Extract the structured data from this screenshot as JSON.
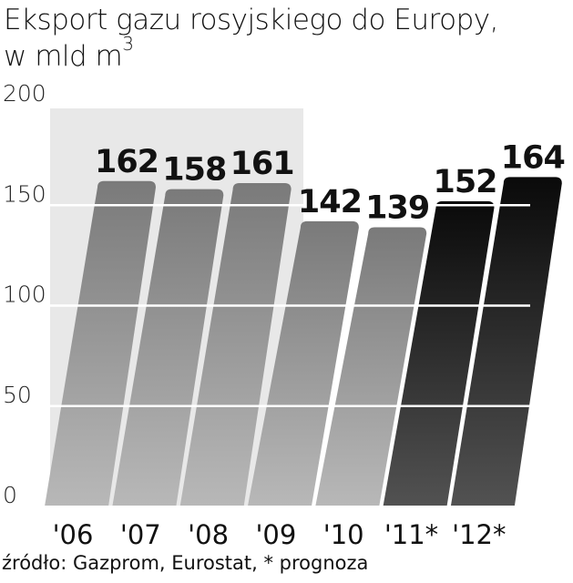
{
  "title_line1": "Eksport gazu rosyjskiego do Europy,",
  "title_line2": "w mld m",
  "title_sup": "3",
  "source": "źródło: Gazprom, Eurostat, * prognoza",
  "chart_data": {
    "type": "bar",
    "title": "Eksport gazu rosyjskiego do Europy, w mld m3",
    "categories": [
      "'06",
      "'07",
      "'08",
      "'09",
      "'10",
      "'11*",
      "'12*"
    ],
    "values": [
      162,
      158,
      161,
      142,
      139,
      152,
      164
    ],
    "value_labels": [
      "162",
      "158",
      "161",
      "142",
      "139",
      "152",
      "164"
    ],
    "forecast": [
      false,
      false,
      false,
      false,
      false,
      true,
      true
    ],
    "ylim": [
      0,
      200
    ],
    "yticks": [
      0,
      50,
      100,
      150,
      200
    ],
    "ytick_labels": [
      "0",
      "50",
      "100",
      "150",
      "200"
    ],
    "grid": true,
    "colors": {
      "actual": "#8e8e8e",
      "forecast": "#1c1c1c",
      "band": "#e8e8e8"
    }
  }
}
